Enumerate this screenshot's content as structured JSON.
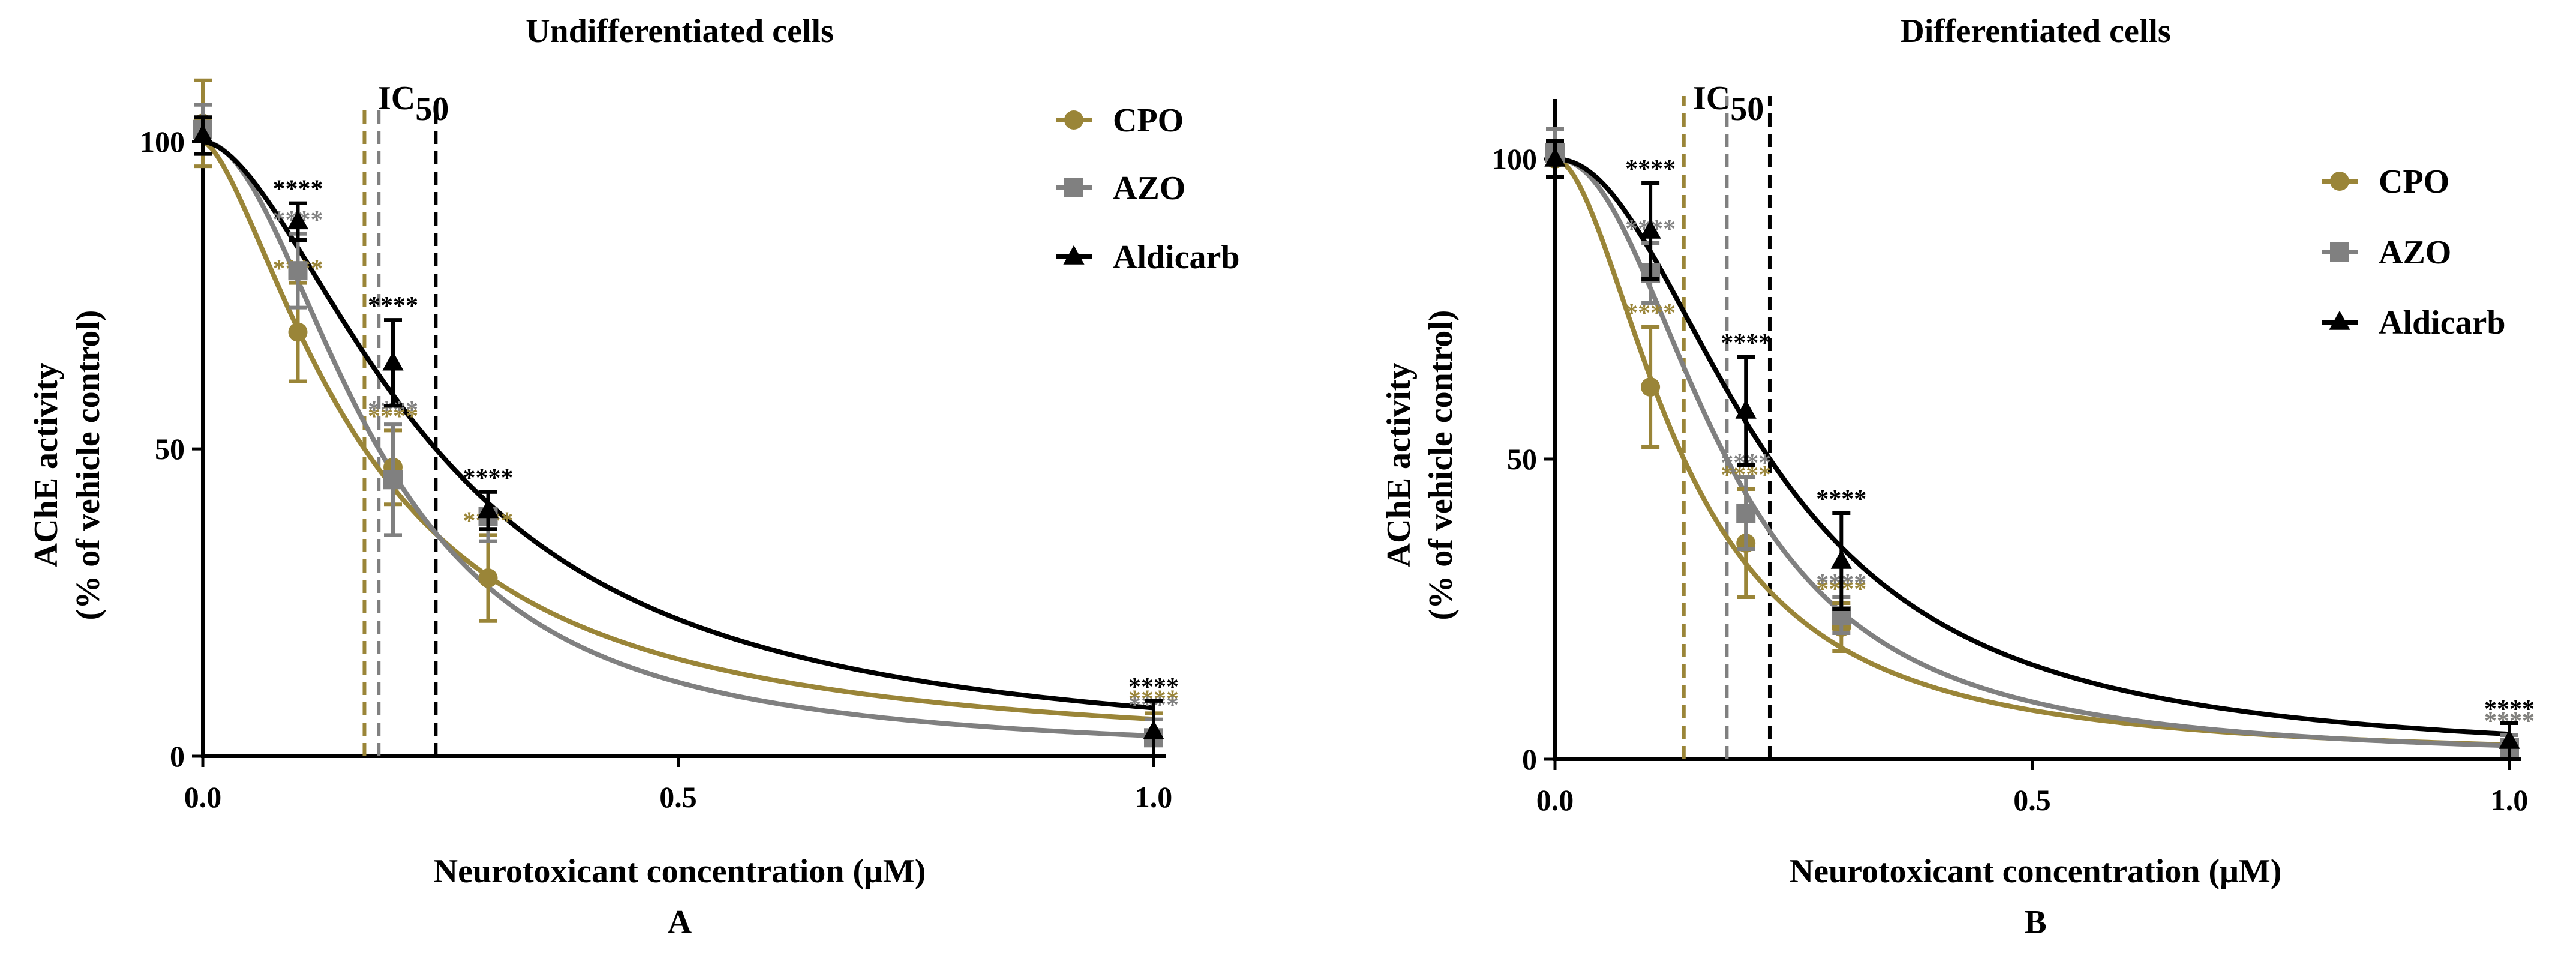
{
  "chart_data": [
    {
      "type": "line",
      "panel": "A",
      "title": "Undifferentiated cells",
      "xlabel": "Neurotoxicant concentration (μM)",
      "ylabel": "AChE activity",
      "ylabel2": "(% of vehicle control)",
      "xlim": [
        0,
        1.0
      ],
      "ylim": [
        0,
        105
      ],
      "xticks": [
        "0.0",
        "0.5",
        "1.0"
      ],
      "yticks": [
        "0",
        "50",
        "100"
      ],
      "ic50_label": "IC",
      "ic50_sub": "50",
      "legend_position": "top-right",
      "series": [
        {
          "name": "CPO",
          "color": "#9a8538",
          "marker": "circle",
          "x": [
            0,
            0.1,
            0.2,
            0.3,
            1.0
          ],
          "y": [
            103,
            69,
            47,
            29,
            3
          ],
          "err": [
            7,
            8,
            6,
            7,
            4
          ],
          "fit": {
            "ic50": 0.17,
            "hill": 1.55
          },
          "ic50": 0.17,
          "sig": [
            "",
            "****",
            "****",
            "****",
            "****"
          ]
        },
        {
          "name": "AZO",
          "color": "#808080",
          "marker": "square",
          "x": [
            0,
            0.1,
            0.2,
            0.3,
            1.0
          ],
          "y": [
            102,
            79,
            45,
            39,
            3
          ],
          "err": [
            4,
            6,
            9,
            4,
            3
          ],
          "fit": {
            "ic50": 0.185,
            "hill": 2.0
          },
          "ic50": 0.185,
          "sig": [
            "",
            "****",
            "****",
            "****",
            "****"
          ]
        },
        {
          "name": "Aldicarb",
          "color": "#000000",
          "marker": "triangle",
          "x": [
            0,
            0.1,
            0.2,
            0.3,
            1.0
          ],
          "y": [
            101,
            87,
            64,
            40,
            4
          ],
          "err": [
            3,
            3,
            7,
            3,
            5
          ],
          "fit": {
            "ic50": 0.245,
            "hill": 1.75
          },
          "ic50": 0.245,
          "sig": [
            "",
            "****",
            "****",
            "****",
            "****"
          ]
        }
      ]
    },
    {
      "type": "line",
      "panel": "B",
      "title": "Differentiated cells",
      "xlabel": "Neurotoxicant concentration (μM)",
      "ylabel": "AChE activity",
      "ylabel2": "(% of vehicle control)",
      "xlim": [
        0,
        1.0
      ],
      "ylim": [
        0,
        110
      ],
      "xticks": [
        "0.0",
        "0.5",
        "1.0"
      ],
      "yticks": [
        "0",
        "50",
        "100"
      ],
      "ic50_label": "IC",
      "ic50_sub": "50",
      "legend_position": "top-right",
      "series": [
        {
          "name": "CPO",
          "color": "#9a8538",
          "marker": "circle",
          "x": [
            0,
            0.1,
            0.2,
            0.3,
            1.0
          ],
          "y": [
            100,
            62,
            36,
            22,
            2
          ],
          "err": [
            3,
            10,
            9,
            4,
            2
          ],
          "fit": {
            "ic50": 0.135,
            "hill": 1.85
          },
          "ic50": 0.135,
          "sig": [
            "",
            "****",
            "****",
            "****",
            "****"
          ]
        },
        {
          "name": "AZO",
          "color": "#808080",
          "marker": "square",
          "x": [
            0,
            0.1,
            0.2,
            0.3,
            1.0
          ],
          "y": [
            101,
            81,
            41,
            24,
            2
          ],
          "err": [
            4,
            5,
            6,
            3,
            2
          ],
          "fit": {
            "ic50": 0.18,
            "hill": 2.2
          },
          "ic50": 0.18,
          "sig": [
            "",
            "****",
            "****",
            "****",
            "****"
          ]
        },
        {
          "name": "Aldicarb",
          "color": "#000000",
          "marker": "triangle",
          "x": [
            0,
            0.1,
            0.2,
            0.3,
            1.0
          ],
          "y": [
            100,
            88,
            58,
            33,
            3
          ],
          "err": [
            3,
            8,
            9,
            8,
            3
          ],
          "fit": {
            "ic50": 0.225,
            "hill": 2.1
          },
          "ic50": 0.225,
          "sig": [
            "",
            "****",
            "****",
            "****",
            "****"
          ]
        }
      ]
    }
  ]
}
